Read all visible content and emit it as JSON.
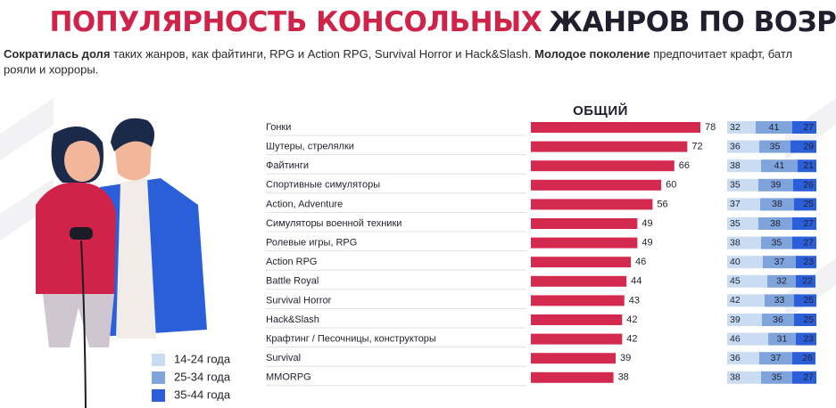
{
  "chart_data": {
    "type": "bar",
    "title": [
      "ПОПУЛЯРНОСТЬ КОНСОЛЬНЫХ",
      "ЖАНРОВ ПО ВОЗРАСТУ"
    ],
    "subtitle": [
      "Сократилась доля",
      " таких жанров, как файтинги, RPG и Action RPG, Survival Horror и Hack&Slash. ",
      "Молодое поколение",
      " предпочитает крафт, батл",
      "рояли и хорроры."
    ],
    "overall": {
      "name": "ОБЩИЙ",
      "color": "#d42a4f",
      "values": [
        78,
        72,
        66,
        60,
        56,
        49,
        49,
        46,
        44,
        43,
        42,
        42,
        39,
        38
      ]
    },
    "categories": [
      "Гонки",
      "Шутеры, стрелялки",
      "Файтинги",
      "Спортивные симуляторы",
      "Action, Adventure",
      "Симуляторы военной техники",
      "Ролевые игры, RPG",
      "Action RPG",
      "Battle Royal",
      "Survival Horror",
      "Hack&Slash",
      "Крафтинг / Песочницы, конструкторы",
      "Survival",
      "MMORPG"
    ],
    "series": [
      {
        "name": "14-24 года",
        "color": "#c9dcf1",
        "values": [
          32,
          36,
          38,
          35,
          37,
          35,
          38,
          40,
          45,
          42,
          39,
          46,
          36,
          38
        ]
      },
      {
        "name": "25-34 года",
        "color": "#7fa3db",
        "values": [
          41,
          35,
          41,
          39,
          38,
          38,
          35,
          37,
          32,
          33,
          36,
          31,
          37,
          35
        ]
      },
      {
        "name": "35-44 года",
        "color": "#2b5fd9",
        "values": [
          27,
          29,
          21,
          26,
          25,
          27,
          27,
          23,
          22,
          25,
          25,
          23,
          26,
          27
        ]
      }
    ]
  }
}
